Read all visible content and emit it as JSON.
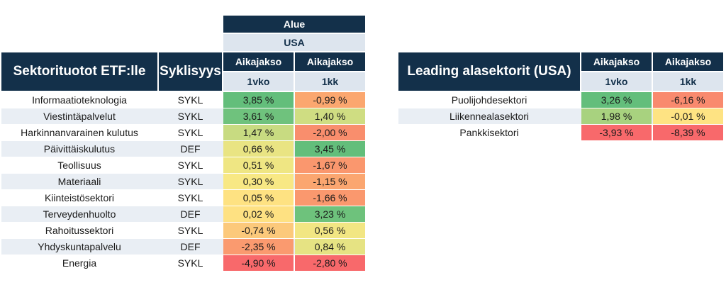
{
  "left_table": {
    "region_label": "Alue",
    "region_value": "USA",
    "title": "Sektorituotot ETF:lle",
    "cyclicality_header": "Syklisyys",
    "period_label": "Aikajakso",
    "period_1": "1vko",
    "period_2": "1kk",
    "rows": [
      {
        "sector": "Informaatioteknologia",
        "type": "SYKL",
        "w1": "3,85 %",
        "m1": "-0,99 %",
        "w1_color": "#63be7b",
        "m1_color": "#fba76f"
      },
      {
        "sector": "Viestintäpalvelut",
        "type": "SYKL",
        "w1": "3,61 %",
        "m1": "1,40 %",
        "w1_color": "#6fc27d",
        "m1_color": "#cfdd82"
      },
      {
        "sector": "Harkinnanvarainen kulutus",
        "type": "SYKL",
        "w1": "1,47 %",
        "m1": "-2,00 %",
        "w1_color": "#c8db81",
        "m1_color": "#f98e6d"
      },
      {
        "sector": "Päivittäiskulutus",
        "type": "DEF",
        "w1": "0,66 %",
        "m1": "3,45 %",
        "w1_color": "#e9e483",
        "m1_color": "#63be7b"
      },
      {
        "sector": "Teollisuus",
        "type": "SYKL",
        "w1": "0,51 %",
        "m1": "-1,67 %",
        "w1_color": "#efe683",
        "m1_color": "#fa976e"
      },
      {
        "sector": "Materiaali",
        "type": "SYKL",
        "w1": "0,30 %",
        "m1": "-1,15 %",
        "w1_color": "#f8e884",
        "m1_color": "#fba670"
      },
      {
        "sector": "Kiinteistösektori",
        "type": "SYKL",
        "w1": "0,05 %",
        "m1": "-1,66 %",
        "w1_color": "#fee282",
        "m1_color": "#fa986e"
      },
      {
        "sector": "Terveydenhuolto",
        "type": "DEF",
        "w1": "0,02 %",
        "m1": "3,23 %",
        "w1_color": "#fee182",
        "m1_color": "#6ec27c"
      },
      {
        "sector": "Rahoitussektori",
        "type": "SYKL",
        "w1": "-0,74 %",
        "m1": "0,56 %",
        "w1_color": "#fcc97b",
        "m1_color": "#f2e683"
      },
      {
        "sector": "Yhdyskuntapalvelu",
        "type": "DEF",
        "w1": "-2,35 %",
        "m1": "0,84 %",
        "w1_color": "#fa9a6f",
        "m1_color": "#e6e383"
      },
      {
        "sector": "Energia",
        "type": "SYKL",
        "w1": "-4,90 %",
        "m1": "-2,80 %",
        "w1_color": "#f8696b",
        "m1_color": "#f8696b"
      }
    ]
  },
  "right_table": {
    "title": "Leading alasektorit (USA)",
    "period_label": "Aikajakso",
    "period_1": "1vko",
    "period_2": "1kk",
    "rows": [
      {
        "sector": "Puolijohdesektori",
        "w1": "3,26 %",
        "m1": "-6,16 %",
        "w1_color": "#63be7b",
        "m1_color": "#f98a6e"
      },
      {
        "sector": "Liikennealasektori",
        "w1": "1,98 %",
        "m1": "-0,01 %",
        "w1_color": "#a8d27f",
        "m1_color": "#fee383"
      },
      {
        "sector": "Pankkisektori",
        "w1": "-3,93 %",
        "m1": "-8,39 %",
        "w1_color": "#f8696b",
        "m1_color": "#f8696b"
      }
    ]
  }
}
